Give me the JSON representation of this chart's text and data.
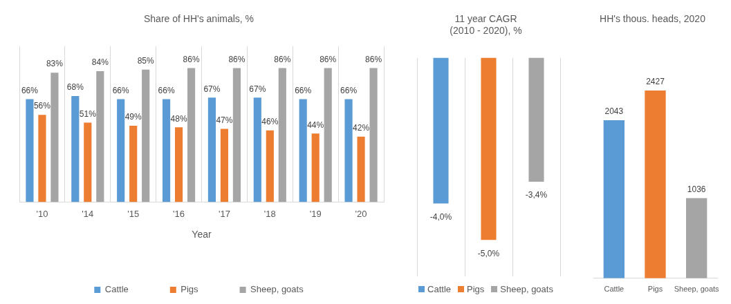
{
  "chart_data": [
    {
      "type": "bar",
      "title": "Share of HH's animals, %",
      "xlabel": "Year",
      "categories": [
        "'10",
        "'14",
        "'15",
        "'16",
        "'17",
        "'18",
        "'19",
        "'20"
      ],
      "series": [
        {
          "name": "Cattle",
          "color": "#5b9bd5",
          "values": [
            66,
            68,
            66,
            66,
            67,
            67,
            66,
            66
          ],
          "value_labels": [
            "66%",
            "68%",
            "66%",
            "66%",
            "67%",
            "67%",
            "66%",
            "66%"
          ]
        },
        {
          "name": "Pigs",
          "color": "#ed7d31",
          "values": [
            56,
            51,
            49,
            48,
            47,
            46,
            44,
            42
          ],
          "value_labels": [
            "56%",
            "51%",
            "49%",
            "48%",
            "47%",
            "46%",
            "44%",
            "42%"
          ]
        },
        {
          "name": "Sheep, goats",
          "color": "#a5a5a5",
          "values": [
            83,
            84,
            85,
            86,
            86,
            86,
            86,
            86
          ],
          "value_labels": [
            "83%",
            "84%",
            "85%",
            "86%",
            "86%",
            "86%",
            "86%",
            "86%"
          ]
        }
      ],
      "ylim": [
        0,
        100
      ],
      "grid": "x",
      "legend": "bottom",
      "tick_labels": "x"
    },
    {
      "type": "bar",
      "title": "11 year CAGR\n(2010 - 2020), %",
      "categories": [
        "Cattle",
        "Pigs",
        "Sheep, goats"
      ],
      "values": [
        -4.0,
        -5.0,
        -3.4
      ],
      "value_labels": [
        "-4,0%",
        "-5,0%",
        "-3,4%"
      ],
      "colors": [
        "#5b9bd5",
        "#ed7d31",
        "#a5a5a5"
      ],
      "ylim": [
        -6,
        0
      ],
      "grid": "x",
      "tick_labels": false
    },
    {
      "type": "bar",
      "title": "HH's thous. heads, 2020",
      "categories": [
        "Cattle",
        "Pigs",
        "Sheep, goats"
      ],
      "values": [
        2043,
        2427,
        1036
      ],
      "colors": [
        "#5b9bd5",
        "#ed7d31",
        "#a5a5a5"
      ],
      "data_labels": true,
      "tick_labels": "x"
    }
  ]
}
